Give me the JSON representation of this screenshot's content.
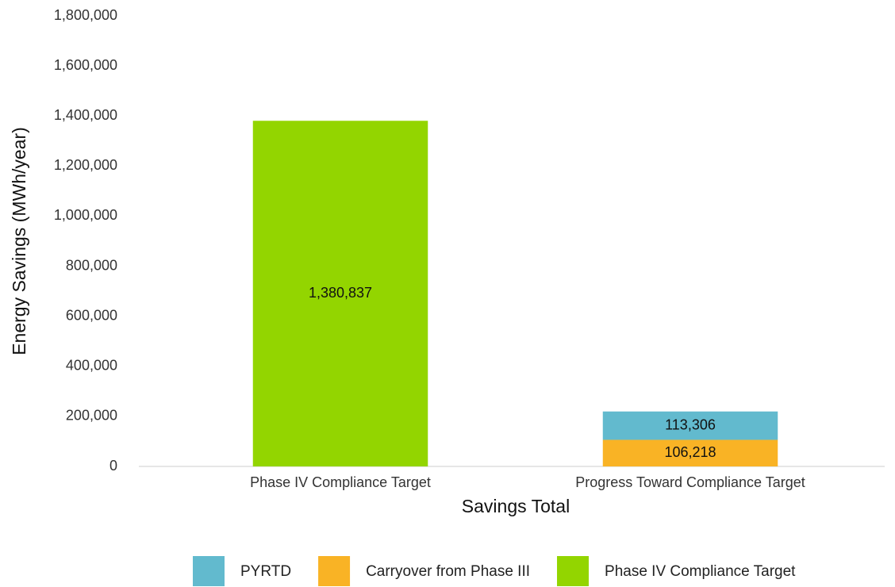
{
  "chart_data": {
    "type": "stacked_bar",
    "x_label": "Savings Total",
    "y_label": "Energy Savings (MWh/year)",
    "categories": [
      "Phase IV Compliance Target",
      "Progress Toward Compliance Target"
    ],
    "series": [
      {
        "name": "PYRTD",
        "color": "#62bace",
        "values": [
          null,
          113306
        ],
        "value_labels": [
          null,
          "113,306"
        ]
      },
      {
        "name": "Carryover from Phase III",
        "color": "#f9b325",
        "values": [
          null,
          106218
        ],
        "value_labels": [
          null,
          "106,218"
        ]
      },
      {
        "name": "Phase IV Compliance Target",
        "color": "#93d500",
        "values": [
          1380837,
          null
        ],
        "value_labels": [
          "1,380,837",
          null
        ]
      }
    ],
    "ylim": [
      0,
      1800000
    ],
    "yticks": [
      0,
      {
        "value": 200000,
        "label": "200,000"
      },
      {
        "value": 400000,
        "label": "400,000"
      },
      {
        "value": 600000,
        "label": "600,000"
      },
      {
        "value": 800000,
        "label": "800,000"
      },
      {
        "value": 1000000,
        "label": "1,000,000"
      },
      {
        "value": 1200000,
        "label": "1,200,000"
      },
      {
        "value": 1400000,
        "label": "1,400,000"
      },
      {
        "value": 1600000,
        "label": "1,600,000"
      },
      {
        "value": 1800000,
        "label": "1,800,000"
      }
    ],
    "grid": false,
    "legend": "bottom"
  }
}
